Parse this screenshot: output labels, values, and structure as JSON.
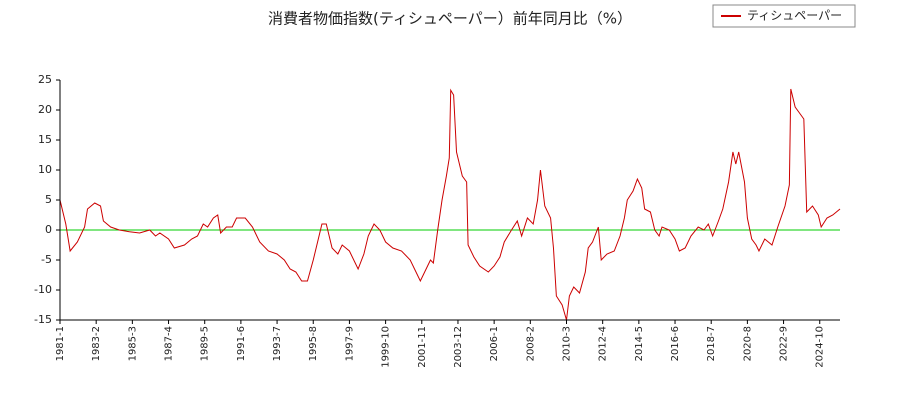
{
  "chart_data": {
    "type": "line",
    "title": "消費者物価指数(ティシュペーパー）前年同月比（%）",
    "x": [
      "1981-1",
      "1981-5",
      "1981-8",
      "1982-1",
      "1982-6",
      "1982-8",
      "1983-1",
      "1983-5",
      "1983-7",
      "1983-12",
      "1984-6",
      "1985-1",
      "1985-8",
      "1986-3",
      "1986-7",
      "1986-10",
      "1987-4",
      "1987-8",
      "1988-3",
      "1988-8",
      "1988-12",
      "1989-4",
      "1989-7",
      "1989-11",
      "1990-2",
      "1990-4",
      "1990-8",
      "1990-12",
      "1991-3",
      "1991-9",
      "1992-2",
      "1992-7",
      "1993-1",
      "1993-7",
      "1993-12",
      "1994-4",
      "1994-8",
      "1994-12",
      "1995-4",
      "1995-8",
      "1995-11",
      "1996-2",
      "1996-5",
      "1996-9",
      "1997-1",
      "1997-4",
      "1997-9",
      "1998-3",
      "1998-7",
      "1998-10",
      "1999-2",
      "1999-6",
      "1999-10",
      "2000-3",
      "2000-9",
      "2001-3",
      "2001-7",
      "2001-10",
      "2002-2",
      "2002-5",
      "2002-7",
      "2002-10",
      "2003-1",
      "2003-4",
      "2003-6",
      "2003-7",
      "2003-9",
      "2003-11",
      "2004-3",
      "2004-6",
      "2004-7",
      "2004-11",
      "2005-3",
      "2005-9",
      "2006-1",
      "2006-5",
      "2006-8",
      "2007-1",
      "2007-5",
      "2007-8",
      "2007-12",
      "2008-4",
      "2008-7",
      "2008-9",
      "2008-12",
      "2009-4",
      "2009-6",
      "2009-8",
      "2009-12",
      "2010-3",
      "2010-5",
      "2010-8",
      "2010-12",
      "2011-4",
      "2011-6",
      "2011-9",
      "2012-1",
      "2012-3",
      "2012-7",
      "2012-12",
      "2013-4",
      "2013-7",
      "2013-9",
      "2014-1",
      "2014-4",
      "2014-7",
      "2014-9",
      "2015-1",
      "2015-4",
      "2015-7",
      "2015-9",
      "2016-2",
      "2016-6",
      "2016-9",
      "2017-1",
      "2017-5",
      "2017-10",
      "2018-2",
      "2018-5",
      "2018-8",
      "2018-12",
      "2019-3",
      "2019-7",
      "2019-10",
      "2019-12",
      "2020-2",
      "2020-6",
      "2020-8",
      "2020-11",
      "2021-2",
      "2021-4",
      "2021-8",
      "2022-1",
      "2022-5",
      "2022-10",
      "2023-1",
      "2023-2",
      "2023-5",
      "2023-8",
      "2023-11",
      "2024-1",
      "2024-5",
      "2024-9",
      "2024-11",
      "2025-3",
      "2025-7",
      "2025-12"
    ],
    "series": [
      {
        "name": "ティシュペーパー",
        "color": "#cc0000",
        "values": [
          5,
          1,
          -3.5,
          -2,
          0.5,
          3.5,
          4.5,
          4,
          1.5,
          0.5,
          0,
          -0.3,
          -0.5,
          0,
          -1,
          -0.5,
          -1.5,
          -3,
          -2.5,
          -1.5,
          -1,
          1,
          0.5,
          2,
          2.5,
          -0.5,
          0.5,
          0.5,
          2,
          2,
          0.5,
          -2,
          -3.5,
          -4,
          -5,
          -6.5,
          -7,
          -8.5,
          -8.5,
          -5,
          -2,
          1,
          1,
          -3,
          -4,
          -2.5,
          -3.5,
          -6.5,
          -4,
          -1,
          1,
          0,
          -2,
          -3,
          -3.5,
          -5,
          -7,
          -8.5,
          -6.5,
          -5,
          -5.5,
          0,
          5,
          9,
          12,
          23.3,
          22.5,
          13,
          9,
          8,
          -2.5,
          -4.5,
          -6,
          -7,
          -6,
          -4.5,
          -2,
          0,
          1.5,
          -1,
          2,
          1,
          5,
          10,
          4,
          2,
          -3,
          -11,
          -12.5,
          -15,
          -11,
          -9.5,
          -10.5,
          -7,
          -3,
          -2,
          0.5,
          -5,
          -4,
          -3.5,
          -1,
          2,
          5,
          6.5,
          8.5,
          7,
          3.5,
          3,
          0,
          -1,
          0.5,
          0,
          -1.5,
          -3.5,
          -3,
          -1,
          0.5,
          0,
          1,
          -1,
          1.5,
          3.5,
          8,
          13,
          11,
          13,
          8,
          2,
          -1.5,
          -2.5,
          -3.5,
          -1.5,
          -2.5,
          0.5,
          4,
          7.5,
          23.5,
          20.5,
          19.5,
          18.5,
          3,
          4,
          2.5,
          0.5,
          2,
          2.5,
          3.5
        ]
      }
    ],
    "xlim": [
      "1981-1",
      "2025-12"
    ],
    "xticks": [
      "1981-1",
      "1983-2",
      "1985-3",
      "1987-4",
      "1989-5",
      "1991-6",
      "1993-7",
      "1995-8",
      "1997-9",
      "1999-10",
      "2001-11",
      "2003-12",
      "2006-1",
      "2008-2",
      "2010-3",
      "2012-4",
      "2014-5",
      "2016-6",
      "2018-7",
      "2020-8",
      "2022-9",
      "2024-10"
    ],
    "ylim": [
      -15,
      25
    ],
    "yticks": [
      -15,
      -10,
      -5,
      0,
      5,
      10,
      15,
      20,
      25
    ],
    "hline": 0,
    "hline_color": "#00cc00",
    "legend": "upper right"
  }
}
